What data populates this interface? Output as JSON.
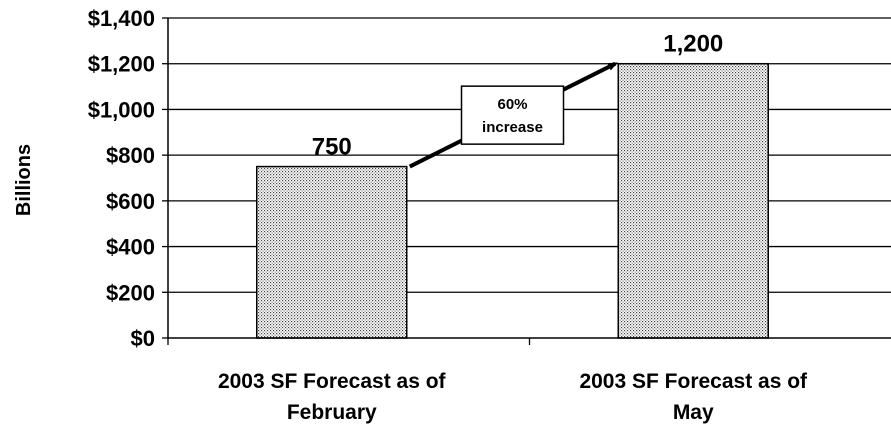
{
  "chart_data": {
    "type": "bar",
    "title": "",
    "xlabel": "",
    "ylabel": "Billions",
    "ylim": [
      0,
      1400
    ],
    "yticks": [
      0,
      200,
      400,
      600,
      800,
      1000,
      1200,
      1400
    ],
    "ytick_labels": [
      "$0",
      "$200",
      "$400",
      "$600",
      "$800",
      "$1,000",
      "$1,200",
      "$1,400"
    ],
    "categories": [
      [
        "2003 SF Forecast as of",
        "February"
      ],
      [
        "2003 SF Forecast as of",
        "May"
      ]
    ],
    "values": [
      750,
      1200
    ],
    "data_labels": [
      "750",
      "1,200"
    ],
    "grid": true,
    "bar_pattern": "dotted-gray",
    "annotation": {
      "lines": [
        "60%",
        "increase"
      ],
      "arrow": "from first bar top to second bar top"
    }
  }
}
